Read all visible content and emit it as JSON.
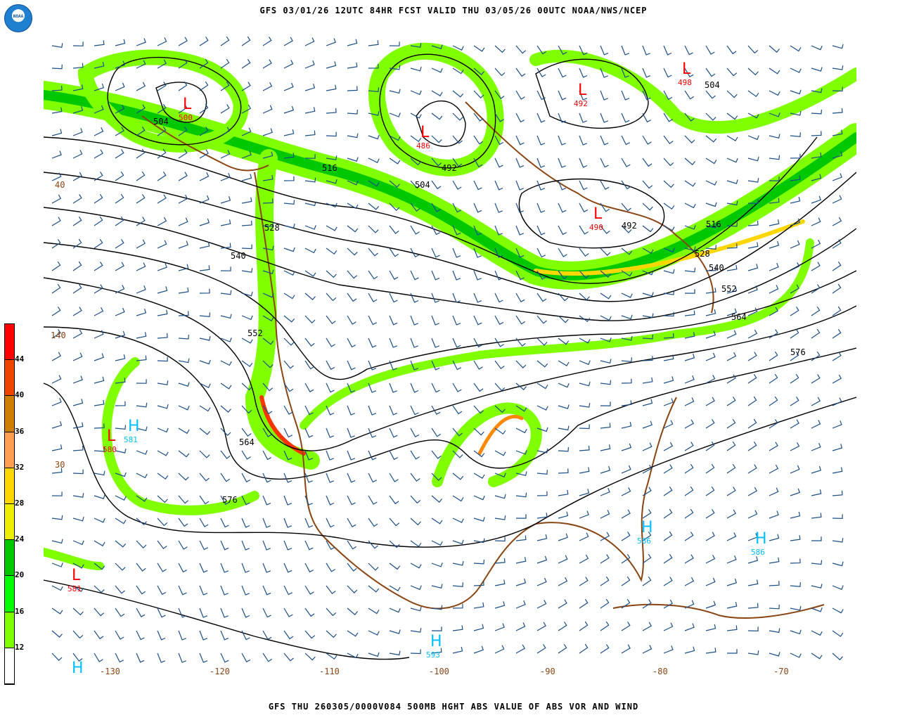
{
  "header": {
    "title": "GFS 03/01/26 12UTC 84HR FCST VALID THU 03/05/26 00UTC NOAA/NWS/NCEP",
    "logo_text": "NOAA"
  },
  "footer": {
    "caption": "GFS THU 260305/0000V084 500MB HGHT ABS VALUE OF ABS VOR AND WIND"
  },
  "colorbar": {
    "labels": [
      "44",
      "40",
      "36",
      "32",
      "28",
      "24",
      "20",
      "16",
      "12"
    ],
    "colors": [
      "#ff0000",
      "#ee4400",
      "#cc7f00",
      "#ffa050",
      "#ffd700",
      "#eeee00",
      "#00c800",
      "#00ff00",
      "#80ff00",
      "#ffffff"
    ]
  },
  "map": {
    "colors": {
      "vorticity_low": "#80ff00",
      "vorticity_mid": "#00c800",
      "contour": "#000000",
      "coast": "#8b4513",
      "barbs": "#1a4f8a",
      "high": "#00bfff",
      "low": "#ff0000"
    },
    "contour_labels": [
      "504",
      "516",
      "528",
      "540",
      "552",
      "564",
      "576",
      "492",
      "504",
      "516",
      "528",
      "540",
      "552",
      "564",
      "576",
      "492",
      "504",
      "516",
      "528",
      "564",
      "576"
    ],
    "pressure_centers": [
      {
        "type": "L",
        "value": "500"
      },
      {
        "type": "L",
        "value": "486"
      },
      {
        "type": "L",
        "value": "492"
      },
      {
        "type": "L",
        "value": "498"
      },
      {
        "type": "L",
        "value": "490"
      },
      {
        "type": "H",
        "value": "581"
      },
      {
        "type": "L",
        "value": "580"
      },
      {
        "type": "L",
        "value": "581"
      },
      {
        "type": "H",
        "value": "586"
      },
      {
        "type": "H",
        "value": "586"
      },
      {
        "type": "H",
        "value": "593"
      },
      {
        "type": "H",
        "value": ""
      }
    ],
    "lon_labels": [
      "-130",
      "-120",
      "-110",
      "-100",
      "-90",
      "-80",
      "-70"
    ],
    "lat_labels": [
      "40",
      "30",
      "140"
    ]
  }
}
